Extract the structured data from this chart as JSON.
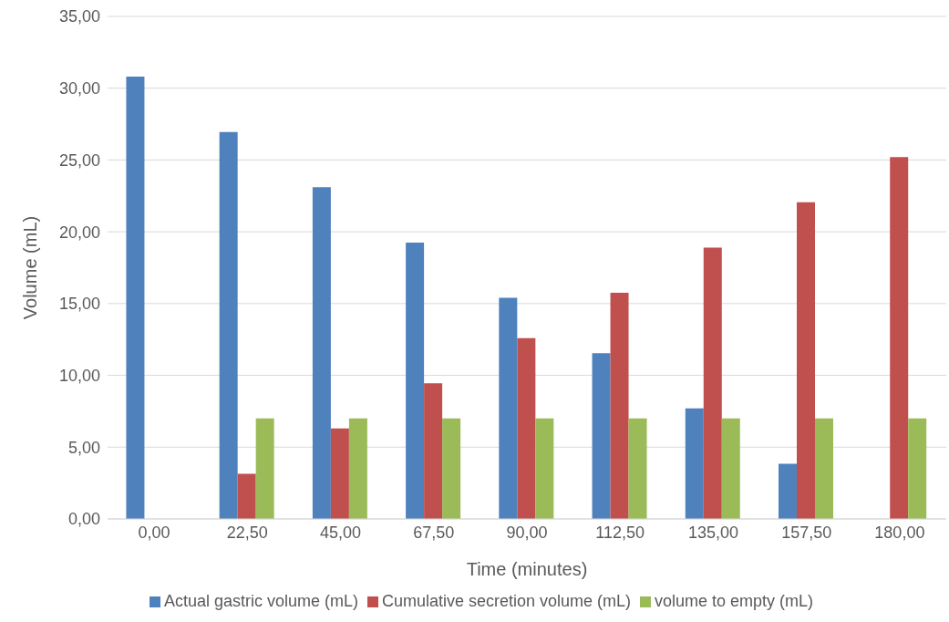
{
  "chart_data": {
    "type": "bar",
    "xlabel": "Time (minutes)",
    "ylabel": "Volume (mL)",
    "categories": [
      "0,00",
      "22,50",
      "45,00",
      "67,50",
      "90,00",
      "112,50",
      "135,00",
      "157,50",
      "180,00"
    ],
    "series": [
      {
        "name": "Actual gastric volume (mL)",
        "color": "#4f81bd",
        "values": [
          30.8,
          26.95,
          23.1,
          19.25,
          15.4,
          11.55,
          7.7,
          3.85,
          null
        ]
      },
      {
        "name": "Cumulative secretion volume (mL)",
        "color": "#c0504d",
        "values": [
          null,
          3.15,
          6.3,
          9.45,
          12.6,
          15.75,
          18.9,
          22.05,
          25.2
        ]
      },
      {
        "name": "volume to empty (mL)",
        "color": "#9bbb59",
        "values": [
          null,
          7,
          7,
          7,
          7,
          7,
          7,
          7,
          7
        ]
      }
    ],
    "ylim": [
      0,
      35
    ],
    "yticks": [
      {
        "value": 0,
        "label": "0,00"
      },
      {
        "value": 5,
        "label": "5,00"
      },
      {
        "value": 10,
        "label": "10,00"
      },
      {
        "value": 15,
        "label": "15,00"
      },
      {
        "value": 20,
        "label": "20,00"
      },
      {
        "value": 25,
        "label": "25,00"
      },
      {
        "value": 30,
        "label": "30,00"
      },
      {
        "value": 35,
        "label": "35,00"
      }
    ],
    "grid": "y",
    "legend": "bottom"
  }
}
